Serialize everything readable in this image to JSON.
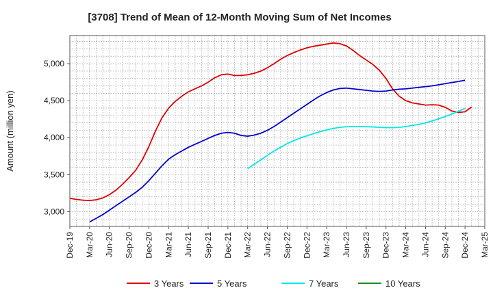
{
  "chart_data": {
    "type": "line",
    "title": "[3708]  Trend of Mean of 12-Month Moving Sum of Net Incomes",
    "ylabel": "Amount (million yen)",
    "xlabel": "",
    "x_ticks": [
      "Dec-19",
      "Mar-20",
      "Jun-20",
      "Sep-20",
      "Dec-20",
      "Mar-21",
      "Jun-21",
      "Sep-21",
      "Dec-21",
      "Mar-22",
      "Jun-22",
      "Sep-22",
      "Dec-22",
      "Mar-23",
      "Jun-23",
      "Sep-23",
      "Dec-23",
      "Mar-24",
      "Jun-24",
      "Sep-24",
      "Dec-24",
      "Mar-25"
    ],
    "y_ticks": [
      3000,
      3500,
      4000,
      4500,
      5000
    ],
    "y_tick_labels": [
      "3,000",
      "3,500",
      "4,000",
      "4,500",
      "5,000"
    ],
    "ylim": [
      2800,
      5380
    ],
    "xlim": [
      "2019-12",
      "2025-03"
    ],
    "grid": true,
    "legend_position": "bottom",
    "series": [
      {
        "name": "3 Years",
        "color": "#dd0000",
        "points": [
          [
            "2019-12",
            3180
          ],
          [
            "2020-01",
            3165
          ],
          [
            "2020-02",
            3155
          ],
          [
            "2020-03",
            3150
          ],
          [
            "2020-04",
            3160
          ],
          [
            "2020-05",
            3185
          ],
          [
            "2020-06",
            3230
          ],
          [
            "2020-07",
            3290
          ],
          [
            "2020-08",
            3370
          ],
          [
            "2020-09",
            3460
          ],
          [
            "2020-10",
            3560
          ],
          [
            "2020-11",
            3700
          ],
          [
            "2020-12",
            3880
          ],
          [
            "2021-01",
            4090
          ],
          [
            "2021-02",
            4270
          ],
          [
            "2021-03",
            4400
          ],
          [
            "2021-04",
            4490
          ],
          [
            "2021-05",
            4560
          ],
          [
            "2021-06",
            4620
          ],
          [
            "2021-07",
            4660
          ],
          [
            "2021-08",
            4700
          ],
          [
            "2021-09",
            4750
          ],
          [
            "2021-10",
            4810
          ],
          [
            "2021-11",
            4850
          ],
          [
            "2021-12",
            4860
          ],
          [
            "2022-01",
            4840
          ],
          [
            "2022-02",
            4840
          ],
          [
            "2022-03",
            4850
          ],
          [
            "2022-04",
            4870
          ],
          [
            "2022-05",
            4900
          ],
          [
            "2022-06",
            4945
          ],
          [
            "2022-07",
            5000
          ],
          [
            "2022-08",
            5060
          ],
          [
            "2022-09",
            5110
          ],
          [
            "2022-10",
            5150
          ],
          [
            "2022-11",
            5185
          ],
          [
            "2022-12",
            5215
          ],
          [
            "2023-01",
            5235
          ],
          [
            "2023-02",
            5250
          ],
          [
            "2023-03",
            5265
          ],
          [
            "2023-04",
            5280
          ],
          [
            "2023-05",
            5270
          ],
          [
            "2023-06",
            5240
          ],
          [
            "2023-07",
            5180
          ],
          [
            "2023-08",
            5110
          ],
          [
            "2023-09",
            5050
          ],
          [
            "2023-10",
            4990
          ],
          [
            "2023-11",
            4910
          ],
          [
            "2023-12",
            4800
          ],
          [
            "2024-01",
            4660
          ],
          [
            "2024-02",
            4560
          ],
          [
            "2024-03",
            4500
          ],
          [
            "2024-04",
            4470
          ],
          [
            "2024-05",
            4455
          ],
          [
            "2024-06",
            4440
          ],
          [
            "2024-07",
            4445
          ],
          [
            "2024-08",
            4440
          ],
          [
            "2024-09",
            4410
          ],
          [
            "2024-10",
            4360
          ],
          [
            "2024-11",
            4340
          ],
          [
            "2024-12",
            4350
          ],
          [
            "2025-01",
            4415
          ]
        ]
      },
      {
        "name": "5 Years",
        "color": "#0000cc",
        "points": [
          [
            "2020-03",
            2860
          ],
          [
            "2020-04",
            2910
          ],
          [
            "2020-05",
            2960
          ],
          [
            "2020-06",
            3020
          ],
          [
            "2020-07",
            3080
          ],
          [
            "2020-08",
            3140
          ],
          [
            "2020-09",
            3200
          ],
          [
            "2020-10",
            3260
          ],
          [
            "2020-11",
            3330
          ],
          [
            "2020-12",
            3420
          ],
          [
            "2021-01",
            3520
          ],
          [
            "2021-02",
            3620
          ],
          [
            "2021-03",
            3710
          ],
          [
            "2021-04",
            3770
          ],
          [
            "2021-05",
            3820
          ],
          [
            "2021-06",
            3870
          ],
          [
            "2021-07",
            3910
          ],
          [
            "2021-08",
            3950
          ],
          [
            "2021-09",
            3990
          ],
          [
            "2021-10",
            4030
          ],
          [
            "2021-11",
            4060
          ],
          [
            "2021-12",
            4070
          ],
          [
            "2022-01",
            4060
          ],
          [
            "2022-02",
            4030
          ],
          [
            "2022-03",
            4020
          ],
          [
            "2022-04",
            4035
          ],
          [
            "2022-05",
            4060
          ],
          [
            "2022-06",
            4100
          ],
          [
            "2022-07",
            4150
          ],
          [
            "2022-08",
            4210
          ],
          [
            "2022-09",
            4270
          ],
          [
            "2022-10",
            4330
          ],
          [
            "2022-11",
            4390
          ],
          [
            "2022-12",
            4450
          ],
          [
            "2023-01",
            4510
          ],
          [
            "2023-02",
            4565
          ],
          [
            "2023-03",
            4610
          ],
          [
            "2023-04",
            4645
          ],
          [
            "2023-05",
            4665
          ],
          [
            "2023-06",
            4670
          ],
          [
            "2023-07",
            4660
          ],
          [
            "2023-08",
            4650
          ],
          [
            "2023-09",
            4640
          ],
          [
            "2023-10",
            4630
          ],
          [
            "2023-11",
            4625
          ],
          [
            "2023-12",
            4630
          ],
          [
            "2024-01",
            4645
          ],
          [
            "2024-02",
            4655
          ],
          [
            "2024-03",
            4660
          ],
          [
            "2024-04",
            4670
          ],
          [
            "2024-05",
            4680
          ],
          [
            "2024-06",
            4690
          ],
          [
            "2024-07",
            4700
          ],
          [
            "2024-08",
            4715
          ],
          [
            "2024-09",
            4730
          ],
          [
            "2024-10",
            4745
          ],
          [
            "2024-11",
            4760
          ],
          [
            "2024-12",
            4775
          ]
        ]
      },
      {
        "name": "7 Years",
        "color": "#00e8e8",
        "points": [
          [
            "2022-03",
            3580
          ],
          [
            "2022-04",
            3640
          ],
          [
            "2022-05",
            3700
          ],
          [
            "2022-06",
            3760
          ],
          [
            "2022-07",
            3820
          ],
          [
            "2022-08",
            3870
          ],
          [
            "2022-09",
            3920
          ],
          [
            "2022-10",
            3960
          ],
          [
            "2022-11",
            3995
          ],
          [
            "2022-12",
            4025
          ],
          [
            "2023-01",
            4055
          ],
          [
            "2023-02",
            4080
          ],
          [
            "2023-03",
            4105
          ],
          [
            "2023-04",
            4125
          ],
          [
            "2023-05",
            4140
          ],
          [
            "2023-06",
            4148
          ],
          [
            "2023-07",
            4150
          ],
          [
            "2023-08",
            4150
          ],
          [
            "2023-09",
            4148
          ],
          [
            "2023-10",
            4145
          ],
          [
            "2023-11",
            4140
          ],
          [
            "2023-12",
            4135
          ],
          [
            "2024-01",
            4135
          ],
          [
            "2024-02",
            4140
          ],
          [
            "2024-03",
            4150
          ],
          [
            "2024-04",
            4165
          ],
          [
            "2024-05",
            4180
          ],
          [
            "2024-06",
            4200
          ],
          [
            "2024-07",
            4225
          ],
          [
            "2024-08",
            4255
          ],
          [
            "2024-09",
            4285
          ],
          [
            "2024-10",
            4320
          ],
          [
            "2024-11",
            4355
          ],
          [
            "2024-12",
            4395
          ]
        ]
      },
      {
        "name": "10 Years",
        "color": "#228b22",
        "points": []
      }
    ]
  }
}
